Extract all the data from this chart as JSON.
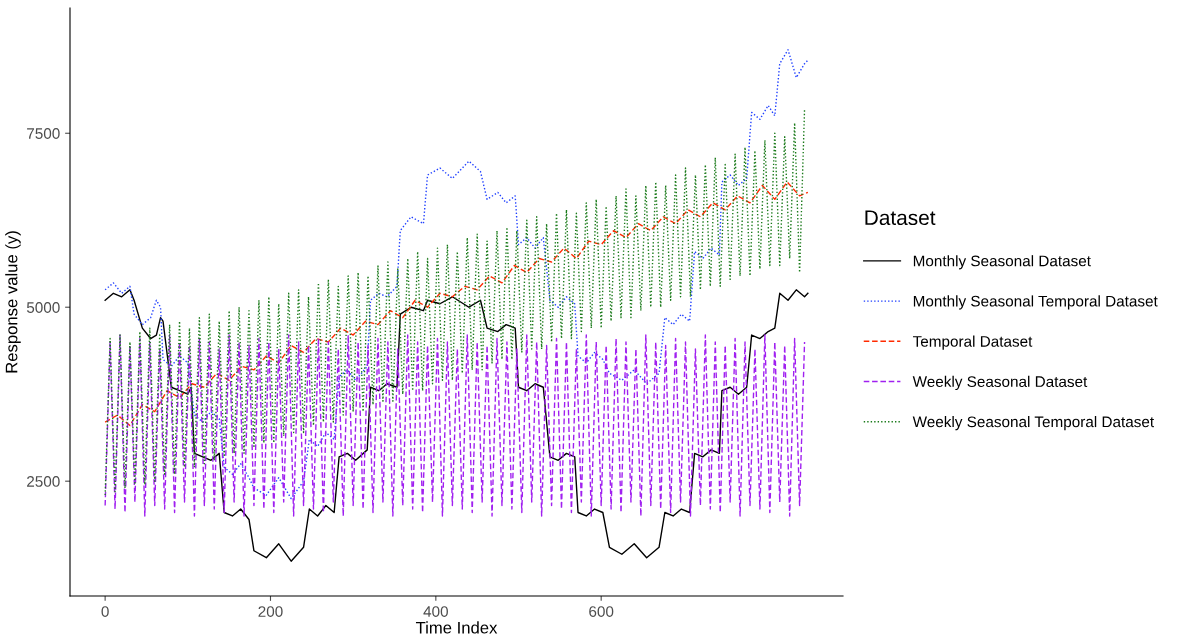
{
  "chart_data": {
    "type": "line",
    "xlabel": "Time Index",
    "ylabel": "Response value (y)",
    "legend_title": "Dataset",
    "legend": "right",
    "grid": false,
    "xlim": [
      -42.5,
      892.5
    ],
    "ylim": [
      850,
      9300
    ],
    "xticks": [
      0,
      200,
      400,
      600
    ],
    "yticks": [
      2500,
      5000,
      7500
    ],
    "series": [
      {
        "name": "Monthly Seasonal Dataset",
        "color": "#000000",
        "line_style": "solid",
        "x": [
          0,
          10,
          20,
          30,
          35,
          45,
          55,
          62,
          67,
          70,
          80,
          90,
          100,
          104,
          108,
          118,
          128,
          138,
          144,
          154,
          164,
          174,
          180,
          195,
          210,
          225,
          240,
          247,
          257,
          267,
          277,
          283,
          293,
          303,
          317,
          321,
          331,
          341,
          353,
          357,
          370,
          385,
          390,
          405,
          420,
          440,
          454,
          462,
          475,
          485,
          496,
          500,
          510,
          520,
          530,
          538,
          548,
          558,
          568,
          572,
          582,
          592,
          602,
          610,
          625,
          640,
          655,
          670,
          677,
          687,
          697,
          707,
          713,
          723,
          733,
          743,
          746,
          756,
          766,
          776,
          782,
          792,
          802,
          810,
          816,
          826,
          836,
          846,
          850
        ],
        "values": [
          5100,
          5200,
          5150,
          5250,
          5100,
          4700,
          4550,
          4600,
          4850,
          4800,
          3850,
          3800,
          3750,
          3850,
          2900,
          2850,
          2800,
          2900,
          2050,
          2000,
          2100,
          1950,
          1500,
          1400,
          1600,
          1350,
          1550,
          2100,
          2000,
          2150,
          2050,
          2850,
          2900,
          2800,
          2950,
          3850,
          3800,
          3900,
          3850,
          4900,
          5000,
          4950,
          5100,
          5050,
          5150,
          5000,
          5100,
          4700,
          4650,
          4750,
          4700,
          3850,
          3800,
          3900,
          3850,
          2850,
          2800,
          2900,
          2850,
          2050,
          2000,
          2100,
          2050,
          1550,
          1450,
          1600,
          1400,
          1550,
          2050,
          2000,
          2100,
          2050,
          2900,
          2850,
          2950,
          2900,
          3800,
          3850,
          3750,
          3850,
          4600,
          4550,
          4650,
          4700,
          5200,
          5100,
          5250,
          5150,
          5200
        ]
      },
      {
        "name": "Monthly Seasonal Temporal Dataset",
        "color": "#2040ff",
        "line_style": "dotted",
        "x": [
          0,
          10,
          20,
          30,
          35,
          45,
          55,
          62,
          67,
          70,
          80,
          90,
          100,
          108,
          118,
          128,
          138,
          144,
          154,
          164,
          174,
          180,
          195,
          210,
          225,
          240,
          247,
          257,
          267,
          277,
          283,
          293,
          303,
          317,
          321,
          331,
          341,
          353,
          357,
          370,
          385,
          390,
          405,
          420,
          440,
          454,
          462,
          475,
          485,
          496,
          500,
          510,
          520,
          530,
          538,
          548,
          558,
          568,
          572,
          582,
          592,
          602,
          610,
          625,
          640,
          655,
          670,
          677,
          687,
          697,
          707,
          713,
          723,
          733,
          743,
          746,
          756,
          766,
          776,
          782,
          792,
          802,
          810,
          816,
          826,
          836,
          846,
          850
        ],
        "values": [
          5250,
          5350,
          5200,
          5300,
          4900,
          4750,
          4850,
          5100,
          5000,
          4250,
          4150,
          4300,
          4200,
          3450,
          3350,
          3500,
          3400,
          2700,
          2600,
          2750,
          2550,
          2400,
          2300,
          2550,
          2250,
          2500,
          3100,
          3000,
          3200,
          3100,
          4000,
          4100,
          3950,
          4150,
          5100,
          5200,
          5150,
          5300,
          6100,
          6300,
          6200,
          6900,
          7000,
          6850,
          7100,
          6950,
          6550,
          6650,
          6500,
          6600,
          5900,
          6000,
          5850,
          6000,
          5100,
          5000,
          5150,
          5050,
          4300,
          4200,
          4350,
          4250,
          4050,
          3950,
          4100,
          3900,
          4050,
          4850,
          4750,
          4900,
          4800,
          5800,
          5700,
          5850,
          5750,
          6800,
          6900,
          6750,
          6850,
          7800,
          7700,
          7900,
          7750,
          8500,
          8700,
          8300,
          8500,
          8550
        ]
      },
      {
        "name": "Temporal Dataset",
        "color": "#ff2a00",
        "line_style": "dashed",
        "x": [
          0,
          15,
          30,
          45,
          60,
          75,
          90,
          105,
          120,
          135,
          150,
          165,
          180,
          195,
          210,
          225,
          240,
          255,
          270,
          285,
          300,
          315,
          330,
          345,
          360,
          375,
          390,
          405,
          420,
          435,
          450,
          465,
          480,
          495,
          510,
          525,
          540,
          555,
          570,
          585,
          600,
          615,
          630,
          645,
          660,
          675,
          690,
          705,
          720,
          735,
          750,
          765,
          780,
          795,
          810,
          825,
          840,
          850
        ],
        "values": [
          3350,
          3450,
          3300,
          3600,
          3500,
          3800,
          3700,
          3900,
          3850,
          4050,
          3950,
          4150,
          4100,
          4300,
          4200,
          4450,
          4350,
          4550,
          4500,
          4700,
          4600,
          4800,
          4750,
          4950,
          4850,
          5100,
          5000,
          5200,
          5150,
          5300,
          5250,
          5450,
          5350,
          5600,
          5500,
          5700,
          5650,
          5850,
          5700,
          5950,
          5900,
          6100,
          6000,
          6200,
          6100,
          6300,
          6200,
          6400,
          6300,
          6500,
          6400,
          6600,
          6500,
          6750,
          6550,
          6800,
          6600,
          6650
        ]
      },
      {
        "name": "Weekly Seasonal Dataset",
        "color": "#a020f0",
        "line_style": "dashed",
        "x": [
          0,
          6,
          12,
          18,
          24,
          30,
          36,
          42,
          48,
          54,
          60,
          66,
          72,
          78,
          84,
          90,
          96,
          102,
          108,
          114,
          120,
          126,
          132,
          138,
          144,
          150,
          156,
          162,
          168,
          174,
          180,
          186,
          192,
          198,
          204,
          210,
          216,
          222,
          228,
          234,
          240,
          246,
          252,
          258,
          264,
          270,
          276,
          282,
          288,
          294,
          300,
          306,
          312,
          318,
          324,
          330,
          336,
          342,
          348,
          354,
          360,
          366,
          372,
          378,
          384,
          390,
          396,
          402,
          408,
          414,
          420,
          426,
          432,
          438,
          444,
          450,
          456,
          462,
          468,
          474,
          480,
          486,
          492,
          498,
          504,
          510,
          516,
          522,
          528,
          534,
          540,
          546,
          552,
          558,
          564,
          570,
          576,
          582,
          588,
          594,
          600,
          606,
          612,
          618,
          624,
          630,
          636,
          642,
          648,
          654,
          660,
          666,
          672,
          678,
          684,
          690,
          696,
          702,
          708,
          714,
          720,
          726,
          732,
          738,
          744,
          750,
          756,
          762,
          768,
          774,
          780,
          786,
          792,
          798,
          804,
          810,
          816,
          822,
          828,
          834,
          840,
          846
        ],
        "values": [
          2150,
          4500,
          2100,
          4600,
          2050,
          4450,
          2200,
          4550,
          2000,
          4500,
          2150,
          4400,
          2100,
          4600,
          2050,
          4500,
          2200,
          4450,
          2000,
          4550,
          2150,
          4500,
          2100,
          4400,
          2050,
          4600,
          2200,
          4500,
          2000,
          4450,
          2150,
          4550,
          2100,
          4500,
          2050,
          4400,
          2200,
          4600,
          2000,
          4500,
          2150,
          4450,
          2100,
          4550,
          2050,
          4500,
          2200,
          4400,
          2000,
          4600,
          2150,
          4500,
          2100,
          4450,
          2050,
          4550,
          2200,
          4500,
          2000,
          4400,
          2150,
          4600,
          2100,
          4500,
          2050,
          4450,
          2200,
          4550,
          2000,
          4500,
          2150,
          4400,
          2100,
          4600,
          2050,
          4500,
          2200,
          4450,
          2000,
          4550,
          2150,
          4500,
          2100,
          4400,
          2050,
          4600,
          2200,
          4500,
          2000,
          4450,
          2150,
          4550,
          2100,
          4500,
          2050,
          4400,
          2200,
          4600,
          2000,
          4500,
          2150,
          4450,
          2100,
          4550,
          2050,
          4500,
          2200,
          4400,
          2000,
          4600,
          2150,
          4500,
          2100,
          4450,
          2050,
          4550,
          2200,
          4500,
          2000,
          4400,
          2150,
          4600,
          2100,
          4500,
          2050,
          4450,
          2200,
          4550,
          2000,
          4500,
          2150,
          4400,
          2100,
          4600,
          2050,
          4500,
          2200,
          4450,
          2000,
          4550,
          2150,
          4500
        ]
      },
      {
        "name": "Weekly Seasonal Temporal Dataset",
        "color": "#1a7a1a",
        "line_style": "dotted",
        "x": [
          0,
          6,
          12,
          18,
          24,
          30,
          36,
          42,
          48,
          54,
          60,
          66,
          72,
          78,
          84,
          90,
          96,
          102,
          108,
          114,
          120,
          126,
          132,
          138,
          144,
          150,
          156,
          162,
          168,
          174,
          180,
          186,
          192,
          198,
          204,
          210,
          216,
          222,
          228,
          234,
          240,
          246,
          252,
          258,
          264,
          270,
          276,
          282,
          288,
          294,
          300,
          306,
          312,
          318,
          324,
          330,
          336,
          342,
          348,
          354,
          360,
          366,
          372,
          378,
          384,
          390,
          396,
          402,
          408,
          414,
          420,
          426,
          432,
          438,
          444,
          450,
          456,
          462,
          468,
          474,
          480,
          486,
          492,
          498,
          504,
          510,
          516,
          522,
          528,
          534,
          540,
          546,
          552,
          558,
          564,
          570,
          576,
          582,
          588,
          594,
          600,
          606,
          612,
          618,
          624,
          630,
          636,
          642,
          648,
          654,
          660,
          666,
          672,
          678,
          684,
          690,
          696,
          702,
          708,
          714,
          720,
          726,
          732,
          738,
          744,
          750,
          756,
          762,
          768,
          774,
          780,
          786,
          792,
          798,
          804,
          810,
          816,
          822,
          828,
          834,
          840,
          846
        ],
        "values": [
          2300,
          4550,
          2350,
          4600,
          2400,
          4500,
          2450,
          4650,
          2450,
          4700,
          2500,
          4600,
          2600,
          4750,
          2600,
          4800,
          2700,
          4700,
          2700,
          4850,
          2750,
          4900,
          2800,
          4800,
          2850,
          4950,
          2900,
          5000,
          2900,
          4950,
          3000,
          5100,
          3050,
          5150,
          3050,
          5050,
          3150,
          5200,
          3200,
          5250,
          3200,
          5150,
          3300,
          5350,
          3350,
          5400,
          3350,
          5300,
          3450,
          5450,
          3500,
          5500,
          3500,
          5450,
          3600,
          5600,
          3650,
          5650,
          3650,
          5550,
          3750,
          5700,
          3800,
          5800,
          3800,
          5700,
          3900,
          5850,
          3950,
          5900,
          3950,
          5800,
          4050,
          6000,
          4100,
          6050,
          4100,
          5950,
          4200,
          6100,
          4250,
          6150,
          4250,
          6100,
          4350,
          6250,
          4400,
          6300,
          4400,
          6200,
          4500,
          6350,
          4550,
          6400,
          4550,
          6350,
          4650,
          6500,
          4700,
          6550,
          4700,
          6450,
          4800,
          6600,
          4850,
          6700,
          4850,
          6600,
          4950,
          6750,
          5000,
          6800,
          5000,
          6750,
          5100,
          6900,
          5150,
          7000,
          5150,
          6900,
          5250,
          7050,
          5300,
          7150,
          5300,
          7050,
          5400,
          7200,
          5450,
          7300,
          5450,
          7250,
          5550,
          7400,
          5600,
          7500,
          5600,
          7450,
          5700,
          7650,
          5500,
          7850
        ]
      }
    ]
  }
}
